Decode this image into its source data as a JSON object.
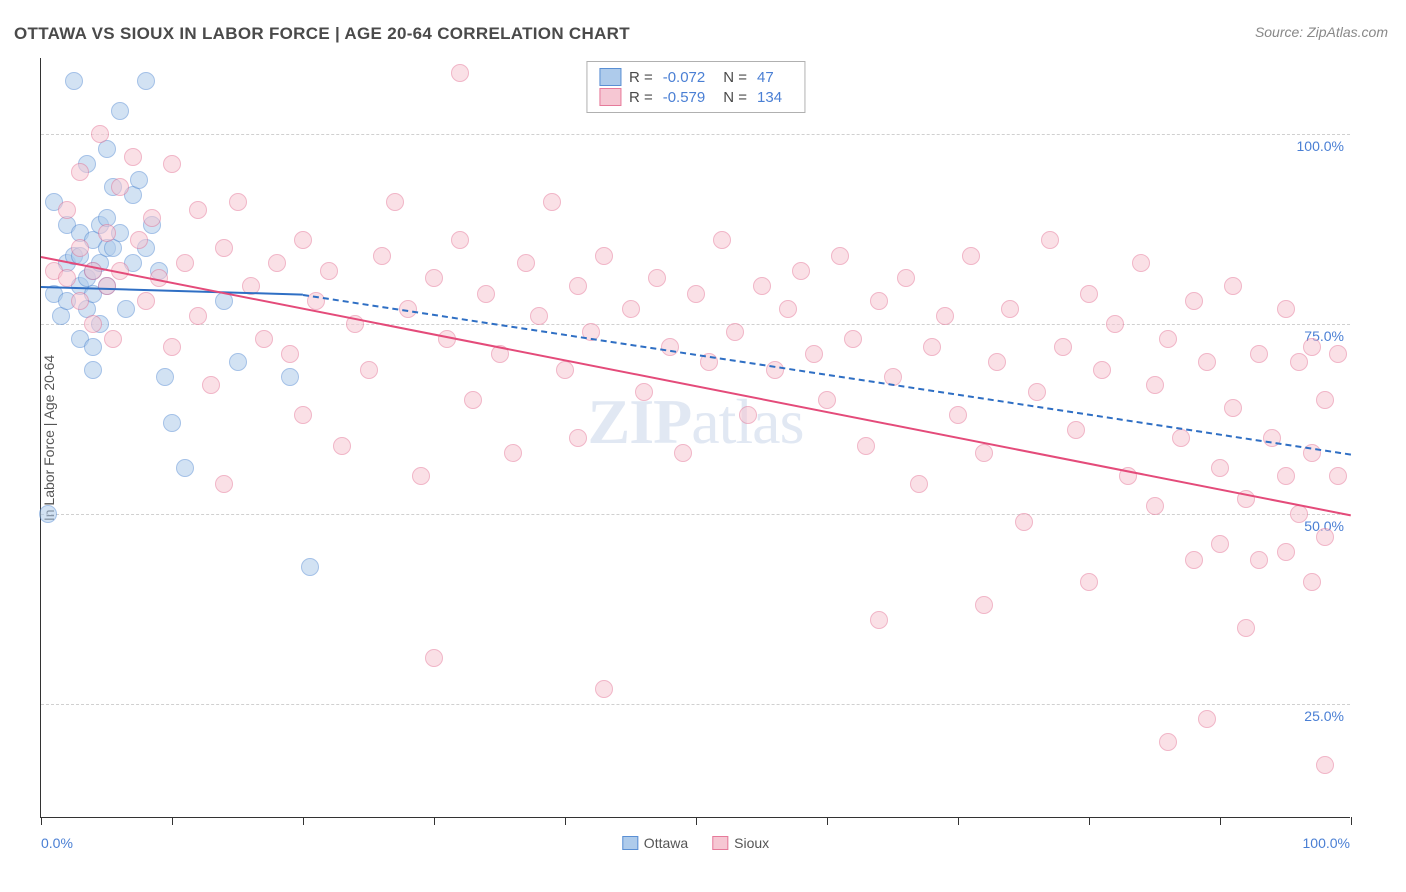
{
  "title": "OTTAWA VS SIOUX IN LABOR FORCE | AGE 20-64 CORRELATION CHART",
  "source": "Source: ZipAtlas.com",
  "ylabel": "In Labor Force | Age 20-64",
  "watermark": {
    "bold": "ZIP",
    "rest": "atlas"
  },
  "chart": {
    "type": "scatter",
    "xlim": [
      0,
      100
    ],
    "ylim": [
      10,
      110
    ],
    "ytick_labels": [
      "25.0%",
      "50.0%",
      "75.0%",
      "100.0%"
    ],
    "ytick_values": [
      25,
      50,
      75,
      100
    ],
    "xtick_values": [
      0,
      10,
      20,
      30,
      40,
      50,
      60,
      70,
      80,
      90,
      100
    ],
    "xtick_label_first": "0.0%",
    "xtick_label_last": "100.0%",
    "grid_color": "#d0d0d0",
    "background_color": "#ffffff",
    "point_radius": 9,
    "point_opacity": 0.55,
    "series": [
      {
        "name": "Ottawa",
        "color_fill": "#aecbeb",
        "color_stroke": "#5a8fd4",
        "trend_color": "#2f6fc4",
        "R": "-0.072",
        "N": "47",
        "trend": {
          "x1": 0,
          "y1": 80,
          "x2": 20,
          "y2": 79,
          "dash_x2": 100,
          "dash_y2": 58
        },
        "points": [
          [
            0.5,
            50
          ],
          [
            1,
            91
          ],
          [
            1,
            79
          ],
          [
            1.5,
            76
          ],
          [
            2,
            88
          ],
          [
            2,
            83
          ],
          [
            2,
            78
          ],
          [
            2.5,
            107
          ],
          [
            2.5,
            84
          ],
          [
            3,
            87
          ],
          [
            3,
            84
          ],
          [
            3,
            80
          ],
          [
            3,
            73
          ],
          [
            3.5,
            96
          ],
          [
            3.5,
            81
          ],
          [
            3.5,
            77
          ],
          [
            4,
            86
          ],
          [
            4,
            82
          ],
          [
            4,
            79
          ],
          [
            4,
            72
          ],
          [
            4,
            69
          ],
          [
            4.5,
            88
          ],
          [
            4.5,
            83
          ],
          [
            4.5,
            75
          ],
          [
            5,
            98
          ],
          [
            5,
            89
          ],
          [
            5,
            85
          ],
          [
            5,
            80
          ],
          [
            5.5,
            93
          ],
          [
            5.5,
            85
          ],
          [
            6,
            103
          ],
          [
            6,
            87
          ],
          [
            6.5,
            77
          ],
          [
            7,
            92
          ],
          [
            7,
            83
          ],
          [
            7.5,
            94
          ],
          [
            8,
            107
          ],
          [
            8,
            85
          ],
          [
            8.5,
            88
          ],
          [
            9,
            82
          ],
          [
            9.5,
            68
          ],
          [
            10,
            62
          ],
          [
            11,
            56
          ],
          [
            14,
            78
          ],
          [
            15,
            70
          ],
          [
            19,
            68
          ],
          [
            20.5,
            43
          ]
        ]
      },
      {
        "name": "Sioux",
        "color_fill": "#f6c7d3",
        "color_stroke": "#e67a9a",
        "trend_color": "#e44b7a",
        "R": "-0.579",
        "N": "134",
        "trend": {
          "x1": 0,
          "y1": 84,
          "x2": 100,
          "y2": 50
        },
        "points": [
          [
            1,
            82
          ],
          [
            2,
            90
          ],
          [
            2,
            81
          ],
          [
            3,
            95
          ],
          [
            3,
            85
          ],
          [
            3,
            78
          ],
          [
            4,
            82
          ],
          [
            4,
            75
          ],
          [
            4.5,
            100
          ],
          [
            5,
            87
          ],
          [
            5,
            80
          ],
          [
            5.5,
            73
          ],
          [
            6,
            93
          ],
          [
            6,
            82
          ],
          [
            7,
            97
          ],
          [
            7.5,
            86
          ],
          [
            8,
            78
          ],
          [
            8.5,
            89
          ],
          [
            9,
            81
          ],
          [
            10,
            96
          ],
          [
            10,
            72
          ],
          [
            11,
            83
          ],
          [
            12,
            90
          ],
          [
            12,
            76
          ],
          [
            13,
            67
          ],
          [
            14,
            85
          ],
          [
            14,
            54
          ],
          [
            15,
            91
          ],
          [
            16,
            80
          ],
          [
            17,
            73
          ],
          [
            18,
            83
          ],
          [
            19,
            71
          ],
          [
            20,
            86
          ],
          [
            20,
            63
          ],
          [
            21,
            78
          ],
          [
            22,
            82
          ],
          [
            23,
            59
          ],
          [
            24,
            75
          ],
          [
            25,
            69
          ],
          [
            26,
            84
          ],
          [
            27,
            91
          ],
          [
            28,
            77
          ],
          [
            29,
            55
          ],
          [
            30,
            81
          ],
          [
            30,
            31
          ],
          [
            31,
            73
          ],
          [
            32,
            86
          ],
          [
            32,
            108
          ],
          [
            33,
            65
          ],
          [
            34,
            79
          ],
          [
            35,
            71
          ],
          [
            36,
            58
          ],
          [
            37,
            83
          ],
          [
            38,
            76
          ],
          [
            39,
            91
          ],
          [
            40,
            69
          ],
          [
            41,
            80
          ],
          [
            41,
            60
          ],
          [
            42,
            74
          ],
          [
            43,
            84
          ],
          [
            43,
            27
          ],
          [
            45,
            77
          ],
          [
            46,
            66
          ],
          [
            47,
            81
          ],
          [
            48,
            72
          ],
          [
            49,
            58
          ],
          [
            50,
            79
          ],
          [
            51,
            70
          ],
          [
            52,
            86
          ],
          [
            53,
            74
          ],
          [
            54,
            63
          ],
          [
            55,
            80
          ],
          [
            56,
            69
          ],
          [
            57,
            77
          ],
          [
            58,
            82
          ],
          [
            59,
            71
          ],
          [
            60,
            65
          ],
          [
            61,
            84
          ],
          [
            62,
            73
          ],
          [
            63,
            59
          ],
          [
            64,
            78
          ],
          [
            64,
            36
          ],
          [
            65,
            68
          ],
          [
            66,
            81
          ],
          [
            67,
            54
          ],
          [
            68,
            72
          ],
          [
            69,
            76
          ],
          [
            70,
            63
          ],
          [
            71,
            84
          ],
          [
            72,
            58
          ],
          [
            72,
            38
          ],
          [
            73,
            70
          ],
          [
            74,
            77
          ],
          [
            75,
            49
          ],
          [
            76,
            66
          ],
          [
            77,
            86
          ],
          [
            78,
            72
          ],
          [
            79,
            61
          ],
          [
            80,
            79
          ],
          [
            80,
            41
          ],
          [
            81,
            69
          ],
          [
            82,
            75
          ],
          [
            83,
            55
          ],
          [
            84,
            83
          ],
          [
            85,
            67
          ],
          [
            85,
            51
          ],
          [
            86,
            73
          ],
          [
            86,
            20
          ],
          [
            87,
            60
          ],
          [
            88,
            44
          ],
          [
            88,
            78
          ],
          [
            89,
            23
          ],
          [
            89,
            70
          ],
          [
            90,
            56
          ],
          [
            90,
            46
          ],
          [
            91,
            64
          ],
          [
            91,
            80
          ],
          [
            92,
            52
          ],
          [
            92,
            35
          ],
          [
            93,
            71
          ],
          [
            93,
            44
          ],
          [
            94,
            60
          ],
          [
            95,
            77
          ],
          [
            95,
            45
          ],
          [
            95,
            55
          ],
          [
            96,
            70
          ],
          [
            96,
            50
          ],
          [
            97,
            72
          ],
          [
            97,
            41
          ],
          [
            97,
            58
          ],
          [
            98,
            17
          ],
          [
            98,
            65
          ],
          [
            98,
            47
          ],
          [
            99,
            55
          ],
          [
            99,
            71
          ]
        ]
      }
    ],
    "legend_bottom": [
      {
        "label": "Ottawa",
        "fill": "#aecbeb",
        "stroke": "#5a8fd4"
      },
      {
        "label": "Sioux",
        "fill": "#f6c7d3",
        "stroke": "#e67a9a"
      }
    ]
  }
}
